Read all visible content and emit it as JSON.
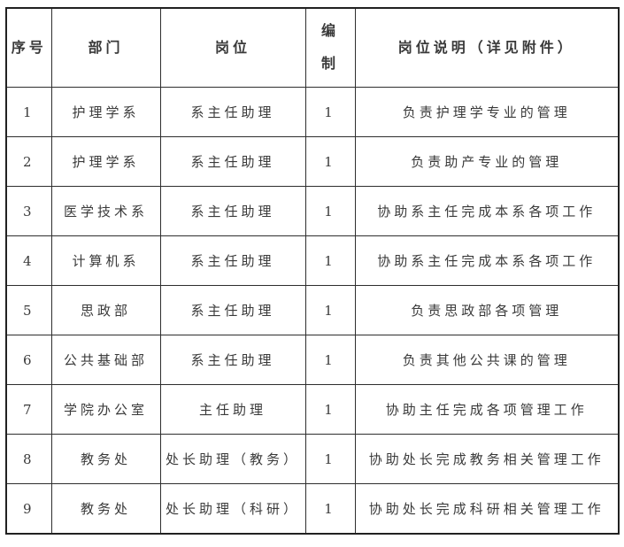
{
  "colors": {
    "background": "#ffffff",
    "outer_border": "#212121",
    "grid_line": "#2e2e2e",
    "text": "#3a3a3a"
  },
  "table": {
    "headers": [
      "序号",
      "部门",
      "岗位",
      "编\n制",
      "岗位说明（详见附件）"
    ],
    "rows": [
      [
        "1",
        "护理学系",
        "系主任助理",
        "1",
        "负责护理学专业的管理"
      ],
      [
        "2",
        "护理学系",
        "系主任助理",
        "1",
        "负责助产专业的管理"
      ],
      [
        "3",
        "医学技术系",
        "系主任助理",
        "1",
        "协助系主任完成本系各项工作"
      ],
      [
        "4",
        "计算机系",
        "系主任助理",
        "1",
        "协助系主任完成本系各项工作"
      ],
      [
        "5",
        "思政部",
        "系主任助理",
        "1",
        "负责思政部各项管理"
      ],
      [
        "6",
        "公共基础部",
        "系主任助理",
        "1",
        "负责其他公共课的管理"
      ],
      [
        "7",
        "学院办公室",
        "主任助理",
        "1",
        "协助主任完成各项管理工作"
      ],
      [
        "8",
        "教务处",
        "处长助理（教务）",
        "1",
        "协助处长完成教务相关管理工作"
      ],
      [
        "9",
        "教务处",
        "处长助理（科研）",
        "1",
        "协助处长完成科研相关管理工作"
      ]
    ]
  }
}
